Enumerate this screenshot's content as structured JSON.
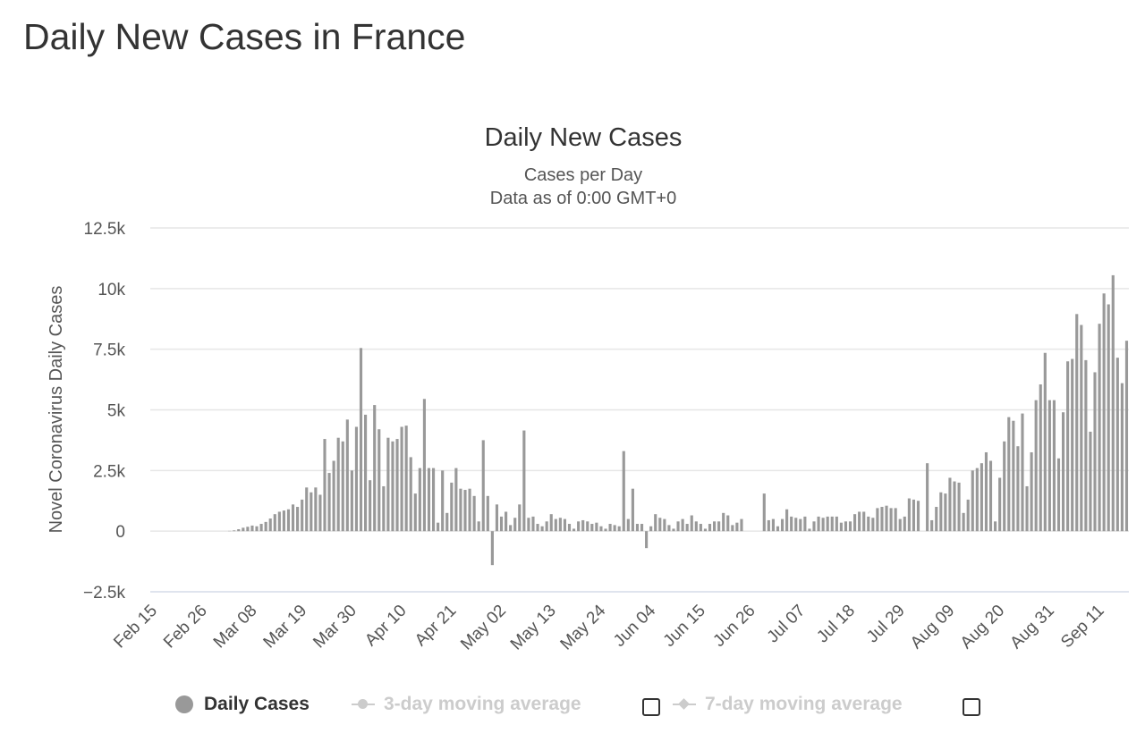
{
  "page": {
    "heading": "Daily New Cases in France"
  },
  "legend": {
    "items": [
      {
        "label": "Daily Cases",
        "active": true
      },
      {
        "label": "3-day moving average",
        "active": false
      },
      {
        "label": "7-day moving average",
        "active": false
      }
    ]
  },
  "colors": {
    "bar": "#999999",
    "grid": "#e6e6e6",
    "text": "#333333",
    "legend_inactive": "#cccccc"
  },
  "chart_data": {
    "type": "bar",
    "title": "Daily New Cases",
    "subtitle": "Cases per Day",
    "subtitle2": "Data as of 0:00 GMT+0",
    "ylabel": "Novel Coronavirus Daily Cases",
    "xlabel": "",
    "ylim": [
      -2500,
      12500
    ],
    "yticks": [
      -2500,
      0,
      2500,
      5000,
      7500,
      10000,
      12500
    ],
    "ytick_labels": [
      "−2.5k",
      "0",
      "2.5k",
      "5k",
      "7.5k",
      "10k",
      "12.5k"
    ],
    "xtick_labels": [
      "Feb 15",
      "Feb 26",
      "Mar 08",
      "Mar 19",
      "Mar 30",
      "Apr 10",
      "Apr 21",
      "May 02",
      "May 13",
      "May 24",
      "Jun 04",
      "Jun 15",
      "Jun 26",
      "Jul 07",
      "Jul 18",
      "Jul 29",
      "Aug 09",
      "Aug 20",
      "Aug 31",
      "Sep 11"
    ],
    "xtick_every": 11,
    "grid": true,
    "legend_position": "bottom",
    "start_date": "Feb 15",
    "series": [
      {
        "name": "Daily Cases",
        "values": [
          0,
          0,
          0,
          0,
          0,
          0,
          0,
          0,
          0,
          0,
          0,
          0,
          0,
          0,
          0,
          0,
          0,
          10,
          30,
          80,
          140,
          180,
          230,
          200,
          300,
          380,
          520,
          700,
          800,
          850,
          900,
          1100,
          1000,
          1300,
          1800,
          1600,
          1800,
          1500,
          3800,
          2400,
          2900,
          3850,
          3700,
          4600,
          2500,
          4300,
          7550,
          4800,
          2100,
          5200,
          4200,
          1850,
          3850,
          3700,
          3800,
          4300,
          4350,
          3050,
          1550,
          2600,
          5450,
          2600,
          2600,
          350,
          2500,
          750,
          2000,
          2600,
          1750,
          1700,
          1750,
          1450,
          400,
          3750,
          1450,
          -1400,
          1100,
          600,
          800,
          250,
          550,
          1100,
          4150,
          550,
          600,
          300,
          200,
          400,
          700,
          500,
          550,
          500,
          300,
          100,
          400,
          450,
          400,
          300,
          350,
          200,
          100,
          300,
          250,
          200,
          3300,
          500,
          1750,
          300,
          300,
          -700,
          200,
          700,
          550,
          500,
          250,
          100,
          400,
          500,
          300,
          650,
          400,
          300,
          100,
          300,
          400,
          400,
          750,
          650,
          250,
          350,
          500,
          0,
          0,
          0,
          0,
          1550,
          450,
          500,
          200,
          500,
          900,
          600,
          550,
          500,
          600,
          100,
          400,
          600,
          550,
          600,
          600,
          600,
          350,
          400,
          400,
          700,
          800,
          800,
          600,
          550,
          950,
          1000,
          1050,
          950,
          950,
          500,
          600,
          1350,
          1300,
          1250,
          0,
          2800,
          450,
          1000,
          1600,
          1550,
          2200,
          2050,
          2000,
          750,
          1300,
          2500,
          2600,
          2800,
          3250,
          2900,
          400,
          2200,
          3700,
          4700,
          4550,
          3500,
          4850,
          1850,
          3250,
          5400,
          6050,
          7350,
          5400,
          5400,
          3000,
          4900,
          7000,
          7100,
          8950,
          8500,
          7050,
          4100,
          6550,
          8550,
          9800,
          9350,
          10550,
          7150,
          6100,
          7850
        ]
      }
    ]
  }
}
